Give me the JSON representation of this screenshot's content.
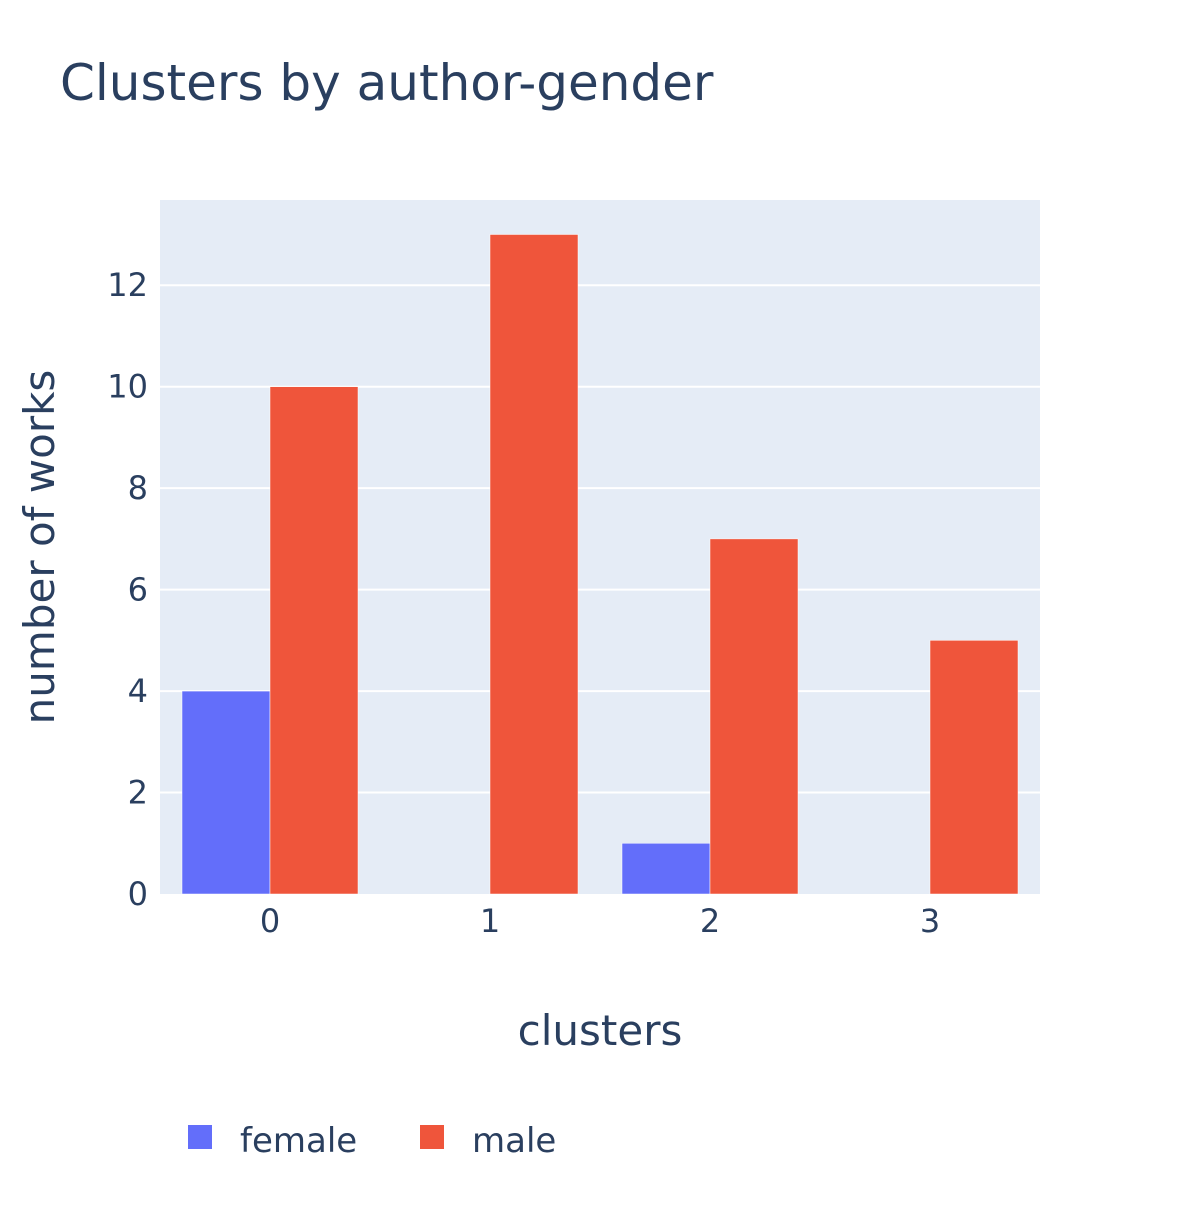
{
  "chart_data": {
    "type": "bar",
    "title": "Clusters by author-gender",
    "xlabel": "clusters",
    "ylabel": "number of works",
    "categories": [
      "0",
      "1",
      "2",
      "3"
    ],
    "series": [
      {
        "name": "female",
        "color": "#636efa",
        "values": [
          4,
          0,
          1,
          0
        ]
      },
      {
        "name": "male",
        "color": "#ef553b",
        "values": [
          10,
          13,
          7,
          5
        ]
      }
    ],
    "ylim": [
      0,
      13.68
    ],
    "yticks": [
      0,
      2,
      4,
      6,
      8,
      10,
      12
    ],
    "ytick_labels": [
      "0",
      "2",
      "4",
      "6",
      "8",
      "10",
      "12"
    ],
    "grid": true,
    "legend_position": "bottom-left",
    "plot_background": "#e5ecf6"
  }
}
